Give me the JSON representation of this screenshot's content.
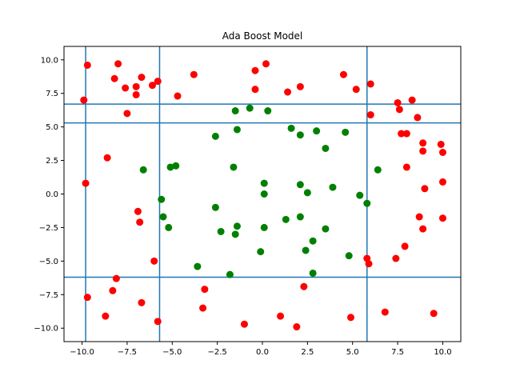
{
  "chart_data": {
    "type": "scatter",
    "title": "Ada Boost Model",
    "xlabel": "",
    "ylabel": "",
    "xlim": [
      -11,
      11
    ],
    "ylim": [
      -11,
      11
    ],
    "xticks": [
      -10.0,
      -7.5,
      -5.0,
      -2.5,
      0.0,
      2.5,
      5.0,
      7.5,
      10.0
    ],
    "yticks": [
      -10.0,
      -7.5,
      -5.0,
      -2.5,
      0.0,
      2.5,
      5.0,
      7.5,
      10.0
    ],
    "xtick_labels": [
      "−10.0",
      "−7.5",
      "−5.0",
      "−2.5",
      "0.0",
      "2.5",
      "5.0",
      "7.5",
      "10.0"
    ],
    "ytick_labels": [
      "−10.0",
      "−7.5",
      "−5.0",
      "−2.5",
      "0.0",
      "2.5",
      "5.0",
      "7.5",
      "10.0"
    ],
    "grid": false,
    "line_color": "#1f77b4",
    "vlines": [
      -9.8,
      -5.7,
      5.8
    ],
    "hlines": [
      6.7,
      5.3,
      -6.2
    ],
    "series": [
      {
        "color": "#ff0000",
        "points": [
          [
            -9.7,
            9.6
          ],
          [
            -8.0,
            9.7
          ],
          [
            -9.9,
            7.0
          ],
          [
            -8.2,
            8.6
          ],
          [
            -7.6,
            7.9
          ],
          [
            -7.0,
            8.0
          ],
          [
            -7.0,
            7.4
          ],
          [
            -6.7,
            8.7
          ],
          [
            -7.5,
            6.0
          ],
          [
            -6.1,
            8.1
          ],
          [
            -5.8,
            8.4
          ],
          [
            -3.8,
            8.9
          ],
          [
            -4.7,
            7.3
          ],
          [
            -0.4,
            9.2
          ],
          [
            0.2,
            9.7
          ],
          [
            -0.4,
            7.8
          ],
          [
            1.4,
            7.6
          ],
          [
            2.1,
            8.0
          ],
          [
            4.5,
            8.9
          ],
          [
            5.2,
            7.8
          ],
          [
            6.0,
            8.2
          ],
          [
            6.0,
            5.9
          ],
          [
            7.5,
            6.8
          ],
          [
            7.6,
            6.3
          ],
          [
            8.3,
            7.0
          ],
          [
            8.6,
            5.7
          ],
          [
            7.7,
            4.5
          ],
          [
            8.0,
            4.5
          ],
          [
            8.9,
            3.8
          ],
          [
            8.9,
            3.2
          ],
          [
            9.9,
            3.7
          ],
          [
            10.0,
            3.1
          ],
          [
            8.0,
            2.0
          ],
          [
            -8.6,
            2.7
          ],
          [
            -9.8,
            0.8
          ],
          [
            9.0,
            0.4
          ],
          [
            10.0,
            0.9
          ],
          [
            -6.9,
            -1.3
          ],
          [
            -6.8,
            -2.1
          ],
          [
            8.7,
            -1.7
          ],
          [
            10.0,
            -1.8
          ],
          [
            8.9,
            -2.6
          ],
          [
            -6.0,
            -5.0
          ],
          [
            5.8,
            -4.8
          ],
          [
            5.9,
            -5.2
          ],
          [
            7.4,
            -4.8
          ],
          [
            7.9,
            -3.9
          ],
          [
            -8.1,
            -6.3
          ],
          [
            -8.3,
            -7.2
          ],
          [
            -9.7,
            -7.7
          ],
          [
            -6.7,
            -8.1
          ],
          [
            -3.2,
            -7.1
          ],
          [
            2.3,
            -6.9
          ],
          [
            -3.3,
            -8.5
          ],
          [
            -8.7,
            -9.1
          ],
          [
            -5.8,
            -9.5
          ],
          [
            -1.0,
            -9.7
          ],
          [
            1.0,
            -9.1
          ],
          [
            1.9,
            -9.9
          ],
          [
            4.9,
            -9.2
          ],
          [
            6.8,
            -8.8
          ],
          [
            9.5,
            -8.9
          ]
        ]
      },
      {
        "color": "#008000",
        "points": [
          [
            -1.5,
            6.2
          ],
          [
            -0.7,
            6.4
          ],
          [
            0.3,
            6.2
          ],
          [
            -1.4,
            4.8
          ],
          [
            1.6,
            4.9
          ],
          [
            2.1,
            4.4
          ],
          [
            3.0,
            4.7
          ],
          [
            4.6,
            4.6
          ],
          [
            -2.6,
            4.3
          ],
          [
            3.5,
            3.4
          ],
          [
            -6.6,
            1.8
          ],
          [
            -5.1,
            2.0
          ],
          [
            -4.8,
            2.1
          ],
          [
            -1.6,
            2.0
          ],
          [
            6.4,
            1.8
          ],
          [
            0.1,
            0.8
          ],
          [
            2.1,
            0.7
          ],
          [
            2.5,
            0.1
          ],
          [
            0.1,
            0.0
          ],
          [
            3.9,
            0.5
          ],
          [
            5.4,
            -0.1
          ],
          [
            5.8,
            -0.7
          ],
          [
            -5.6,
            -0.4
          ],
          [
            -2.6,
            -1.0
          ],
          [
            -5.5,
            -1.7
          ],
          [
            1.3,
            -1.9
          ],
          [
            2.1,
            -1.7
          ],
          [
            -5.2,
            -2.5
          ],
          [
            -2.3,
            -2.8
          ],
          [
            -1.4,
            -2.4
          ],
          [
            -1.5,
            -3.0
          ],
          [
            0.1,
            -2.5
          ],
          [
            3.5,
            -2.6
          ],
          [
            2.8,
            -3.5
          ],
          [
            2.4,
            -4.2
          ],
          [
            -0.1,
            -4.3
          ],
          [
            4.8,
            -4.6
          ],
          [
            -3.6,
            -5.4
          ],
          [
            -1.8,
            -6.0
          ],
          [
            2.8,
            -5.9
          ]
        ]
      }
    ]
  }
}
